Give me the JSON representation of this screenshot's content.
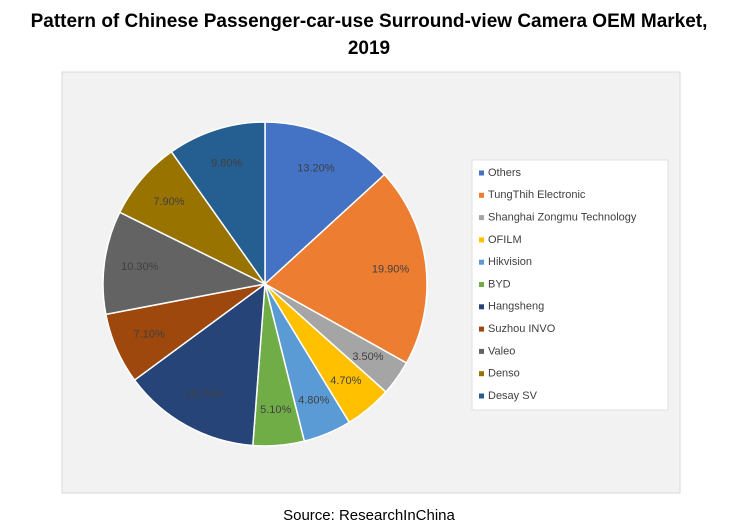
{
  "chart_data": {
    "type": "pie",
    "title": "Pattern of Chinese Passenger-car-use Surround-view Camera OEM Market, 2019",
    "source": "Source: ResearchInChina",
    "categories": [
      "Others",
      "TungThih Electronic",
      "Shanghai Zongmu Technology",
      "OFILM",
      "Hikvision",
      "BYD",
      "Hangsheng",
      "Suzhou INVO",
      "Valeo",
      "Denso",
      "Desay SV"
    ],
    "values": [
      13.2,
      19.9,
      3.5,
      4.7,
      4.8,
      5.1,
      13.7,
      7.1,
      10.3,
      7.9,
      9.8
    ],
    "value_labels": [
      "13.20%",
      "19.90%",
      "3.50%",
      "4.70%",
      "4.80%",
      "5.10%",
      "13.70%",
      "7.10%",
      "10.30%",
      "7.90%",
      "9.80%"
    ],
    "colors": [
      "#4472c4",
      "#ed7d31",
      "#a5a5a5",
      "#ffc000",
      "#5b9bd5",
      "#70ad47",
      "#264478",
      "#9e480e",
      "#636363",
      "#997300",
      "#255e91"
    ],
    "legend": "right"
  }
}
